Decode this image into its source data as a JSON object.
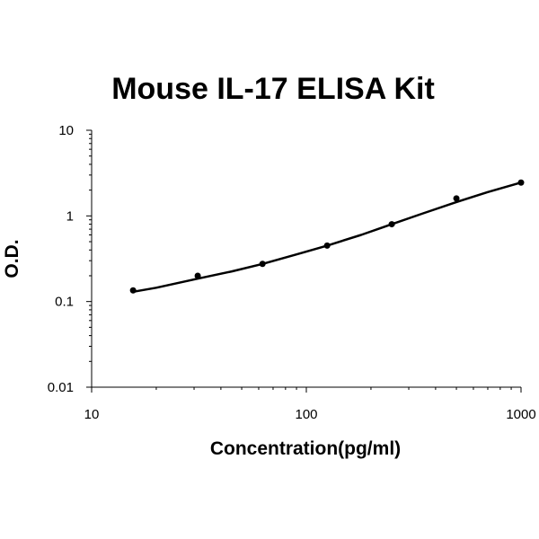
{
  "chart_data": {
    "type": "scatter",
    "title": "Mouse IL-17 ELISA Kit",
    "xlabel": "Concentration(pg/ml)",
    "ylabel": "O.D.",
    "x_scale": "log",
    "y_scale": "log",
    "xlim": [
      10,
      1000
    ],
    "ylim": [
      0.01,
      10
    ],
    "x_tick_labels": [
      "10",
      "100",
      "1000"
    ],
    "y_tick_labels": [
      "10",
      "1",
      "0.1",
      "0.01"
    ],
    "grid": false,
    "legend": "none",
    "series": [
      {
        "points": [
          {
            "x": 15.6,
            "y": 0.135
          },
          {
            "x": 31.2,
            "y": 0.2
          },
          {
            "x": 62.5,
            "y": 0.275
          },
          {
            "x": 125,
            "y": 0.45
          },
          {
            "x": 250,
            "y": 0.8
          },
          {
            "x": 500,
            "y": 1.6
          },
          {
            "x": 1000,
            "y": 2.45
          }
        ],
        "fit_curve": [
          {
            "x": 15.6,
            "y": 0.13
          },
          {
            "x": 20,
            "y": 0.145
          },
          {
            "x": 31.2,
            "y": 0.185
          },
          {
            "x": 45,
            "y": 0.225
          },
          {
            "x": 62.5,
            "y": 0.275
          },
          {
            "x": 90,
            "y": 0.355
          },
          {
            "x": 125,
            "y": 0.45
          },
          {
            "x": 180,
            "y": 0.6
          },
          {
            "x": 250,
            "y": 0.8
          },
          {
            "x": 350,
            "y": 1.07
          },
          {
            "x": 500,
            "y": 1.45
          },
          {
            "x": 700,
            "y": 1.9
          },
          {
            "x": 1000,
            "y": 2.45
          }
        ],
        "color": "#000000"
      }
    ]
  }
}
